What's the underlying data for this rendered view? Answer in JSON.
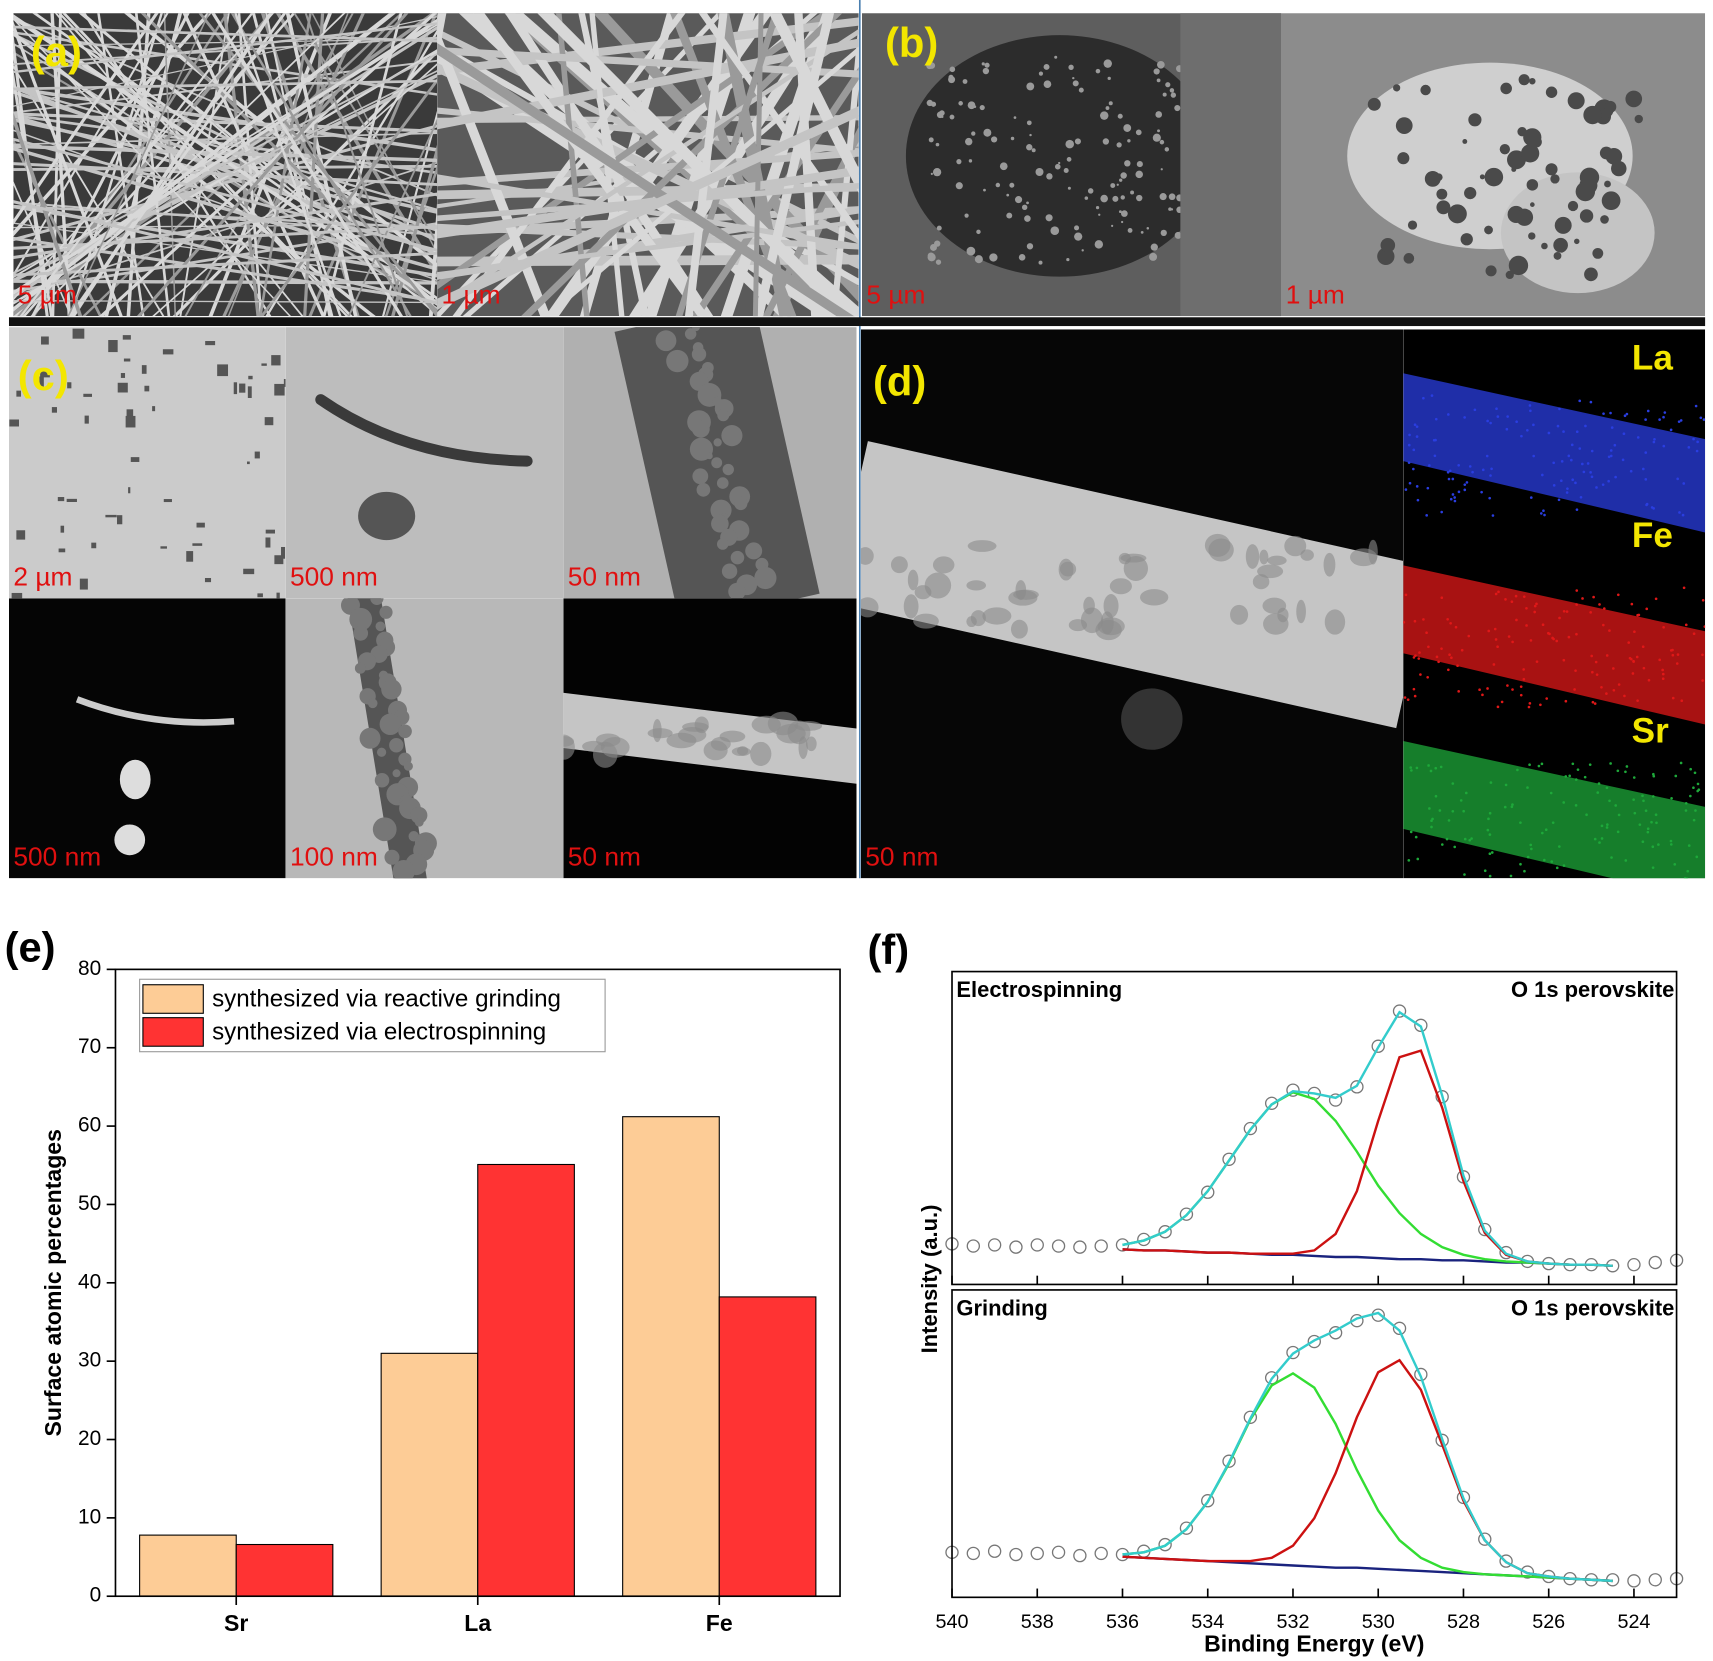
{
  "images": {
    "a": {
      "label": "(a)",
      "scale_bars": [
        "5 µm",
        "1 µm"
      ]
    },
    "b": {
      "label": "(b)",
      "scale_bars": [
        "5 µm",
        "1 µm"
      ]
    },
    "c": {
      "label": "(c)",
      "scale_bars": [
        "2 µm",
        "500 nm",
        "50 nm",
        "500 nm",
        "100 nm",
        "50 nm"
      ]
    },
    "d": {
      "label": "(d)",
      "scale_bars": [
        "50 nm"
      ],
      "elements": [
        "La",
        "Fe",
        "Sr"
      ]
    }
  },
  "chart_data": [
    {
      "type": "bar",
      "label": "(e)",
      "ylabel": "Surface atomic percentages",
      "categories": [
        "Sr",
        "La",
        "Fe"
      ],
      "series": [
        {
          "name": "synthesized via reactive grinding",
          "color": "#fdcc96",
          "values": [
            7.8,
            31,
            61.2
          ]
        },
        {
          "name": "synthesized via electrospinning",
          "color": "#ff3333",
          "values": [
            6.6,
            55.1,
            38.2
          ]
        }
      ],
      "ylim": [
        0,
        80
      ],
      "yticks": [
        0,
        10,
        20,
        30,
        40,
        50,
        60,
        70,
        80
      ],
      "legend": "upper left"
    },
    {
      "type": "line",
      "label": "(f)",
      "xlabel": "Binding Energy (eV)",
      "ylabel": "Intensity (a.u.)",
      "xlim": [
        540,
        523
      ],
      "xticks": [
        540,
        538,
        536,
        534,
        532,
        530,
        528,
        526,
        524
      ],
      "subplots": [
        {
          "annotations": [
            "Electrospinning",
            "O 1s perovskite"
          ],
          "ylim": [
            0,
            285
          ],
          "series": [
            {
              "color": "#777777",
              "marker": "circle",
              "x": [
                540,
                539.5,
                539,
                538.5,
                538,
                537.5,
                537,
                536.5,
                536,
                535.5,
                535,
                534.5,
                534,
                533.5,
                533,
                532.5,
                532,
                531.5,
                531,
                530.5,
                530,
                529.5,
                529,
                528.5,
                528,
                527.5,
                527,
                526.5,
                526,
                525.5,
                525,
                524.5,
                524,
                523.5,
                523
              ],
              "values": [
                37,
                35,
                36,
                34,
                36,
                35,
                34,
                35,
                36,
                41,
                48,
                64,
                84,
                114,
                142,
                165,
                177,
                174,
                168,
                180,
                217,
                249,
                236,
                171,
                98,
                50,
                29,
                21,
                19,
                18,
                18,
                17,
                18,
                20,
                22
              ]
            },
            {
              "color": "#1a237e",
              "x": [
                536,
                535.5,
                535,
                534.5,
                534,
                533.5,
                533,
                532.5,
                532,
                531.5,
                531,
                530.5,
                530,
                529.5,
                529,
                528.5,
                528,
                527.5,
                527,
                526.5,
                526,
                525.5,
                525,
                524.5
              ],
              "values": [
                32,
                31,
                31,
                30,
                29,
                29,
                28,
                27,
                27,
                26,
                25,
                25,
                24,
                23,
                23,
                22,
                22,
                21,
                20,
                20,
                19,
                18,
                18,
                17
              ]
            },
            {
              "color": "#33dd33",
              "x": [
                536,
                535.5,
                535,
                534.5,
                534,
                533.5,
                533,
                532.5,
                532,
                531.5,
                531,
                530.5,
                530,
                529.5,
                529,
                528.5,
                528,
                527.5,
                527,
                526.5,
                526,
                525.5,
                525,
                524.5
              ],
              "values": [
                36,
                40,
                48,
                63,
                85,
                113,
                141,
                164,
                175,
                169,
                149,
                121,
                90,
                65,
                46,
                34,
                27,
                23,
                21,
                20,
                19,
                18,
                18,
                17
              ]
            },
            {
              "color": "#cc1111",
              "x": [
                536,
                535.5,
                535,
                534.5,
                534,
                533.5,
                533,
                532.5,
                532,
                531.5,
                531,
                530.5,
                530,
                529.5,
                529,
                528.5,
                528,
                527.5,
                527,
                526.5,
                526,
                525.5,
                525,
                524.5
              ],
              "values": [
                32,
                31,
                31,
                30,
                29,
                29,
                28,
                28,
                28,
                31,
                46,
                85,
                149,
                207,
                213,
                161,
                94,
                47,
                27,
                21,
                19,
                18,
                18,
                17
              ]
            },
            {
              "color": "#33cccc",
              "x": [
                536,
                535.5,
                535,
                534.5,
                534,
                533.5,
                533,
                532.5,
                532,
                531.5,
                531,
                530.5,
                530,
                529.5,
                529,
                528.5,
                528,
                527.5,
                527,
                526.5,
                526,
                525.5,
                525,
                524.5
              ],
              "values": [
                36,
                40,
                48,
                63,
                85,
                113,
                141,
                164,
                176,
                174,
                170,
                181,
                216,
                248,
                235,
                172,
                99,
                49,
                28,
                21,
                19,
                18,
                18,
                17
              ]
            }
          ]
        },
        {
          "annotations": [
            "Grinding",
            "O 1s perovskite"
          ],
          "ylim": [
            0,
            280
          ],
          "series": [
            {
              "color": "#777777",
              "marker": "circle",
              "x": [
                540,
                539.5,
                539,
                538.5,
                538,
                537.5,
                537,
                536.5,
                536,
                535.5,
                535,
                534.5,
                534,
                533.5,
                533,
                532.5,
                532,
                531.5,
                531,
                530.5,
                530,
                529.5,
                529,
                528.5,
                528,
                527.5,
                527,
                526.5,
                526,
                525.5,
                525,
                524.5,
                524,
                523.5,
                523
              ],
              "values": [
                41,
                40,
                42,
                39,
                40,
                41,
                38,
                40,
                39,
                42,
                48,
                63,
                88,
                124,
                164,
                200,
                223,
                233,
                241,
                252,
                257,
                245,
                203,
                143,
                91,
                53,
                33,
                23,
                19,
                17,
                16,
                16,
                15,
                16,
                17
              ]
            },
            {
              "color": "#1a237e",
              "x": [
                536,
                535.5,
                535,
                534.5,
                534,
                533.5,
                533,
                532.5,
                532,
                531.5,
                531,
                530.5,
                530,
                529.5,
                529,
                528.5,
                528,
                527.5,
                527,
                526.5,
                526,
                525.5,
                525,
                524.5
              ],
              "values": [
                37,
                36,
                35,
                34,
                33,
                32,
                31,
                30,
                29,
                28,
                27,
                27,
                26,
                25,
                24,
                23,
                22,
                21,
                20,
                19,
                18,
                17,
                16,
                15
              ]
            },
            {
              "color": "#33dd33",
              "x": [
                536,
                535.5,
                535,
                534.5,
                534,
                533.5,
                533,
                532.5,
                532,
                531.5,
                531,
                530.5,
                530,
                529.5,
                529,
                528.5,
                528,
                527.5,
                527,
                526.5,
                526,
                525.5,
                525,
                524.5
              ],
              "values": [
                39,
                41,
                47,
                62,
                87,
                122,
                162,
                193,
                204,
                191,
                158,
                116,
                79,
                52,
                36,
                27,
                23,
                21,
                20,
                19,
                18,
                17,
                16,
                15
              ]
            },
            {
              "color": "#cc1111",
              "x": [
                536,
                535.5,
                535,
                534.5,
                534,
                533.5,
                533,
                532.5,
                532,
                531.5,
                531,
                530.5,
                530,
                529.5,
                529,
                528.5,
                528,
                527.5,
                527,
                526.5,
                526,
                525.5,
                525,
                524.5
              ],
              "values": [
                37,
                36,
                35,
                34,
                33,
                33,
                33,
                36,
                47,
                72,
                113,
                164,
                205,
                216,
                189,
                139,
                88,
                52,
                32,
                22,
                19,
                17,
                16,
                15
              ]
            },
            {
              "color": "#33cccc",
              "x": [
                536,
                535.5,
                535,
                534.5,
                534,
                533.5,
                533,
                532.5,
                532,
                531.5,
                531,
                530.5,
                530,
                529.5,
                529,
                528.5,
                528,
                527.5,
                527,
                526.5,
                526,
                525.5,
                525,
                524.5
              ],
              "values": [
                39,
                41,
                47,
                62,
                87,
                123,
                163,
                199,
                222,
                234,
                243,
                254,
                259,
                243,
                201,
                144,
                90,
                52,
                32,
                22,
                19,
                17,
                16,
                15
              ]
            }
          ]
        }
      ]
    }
  ]
}
